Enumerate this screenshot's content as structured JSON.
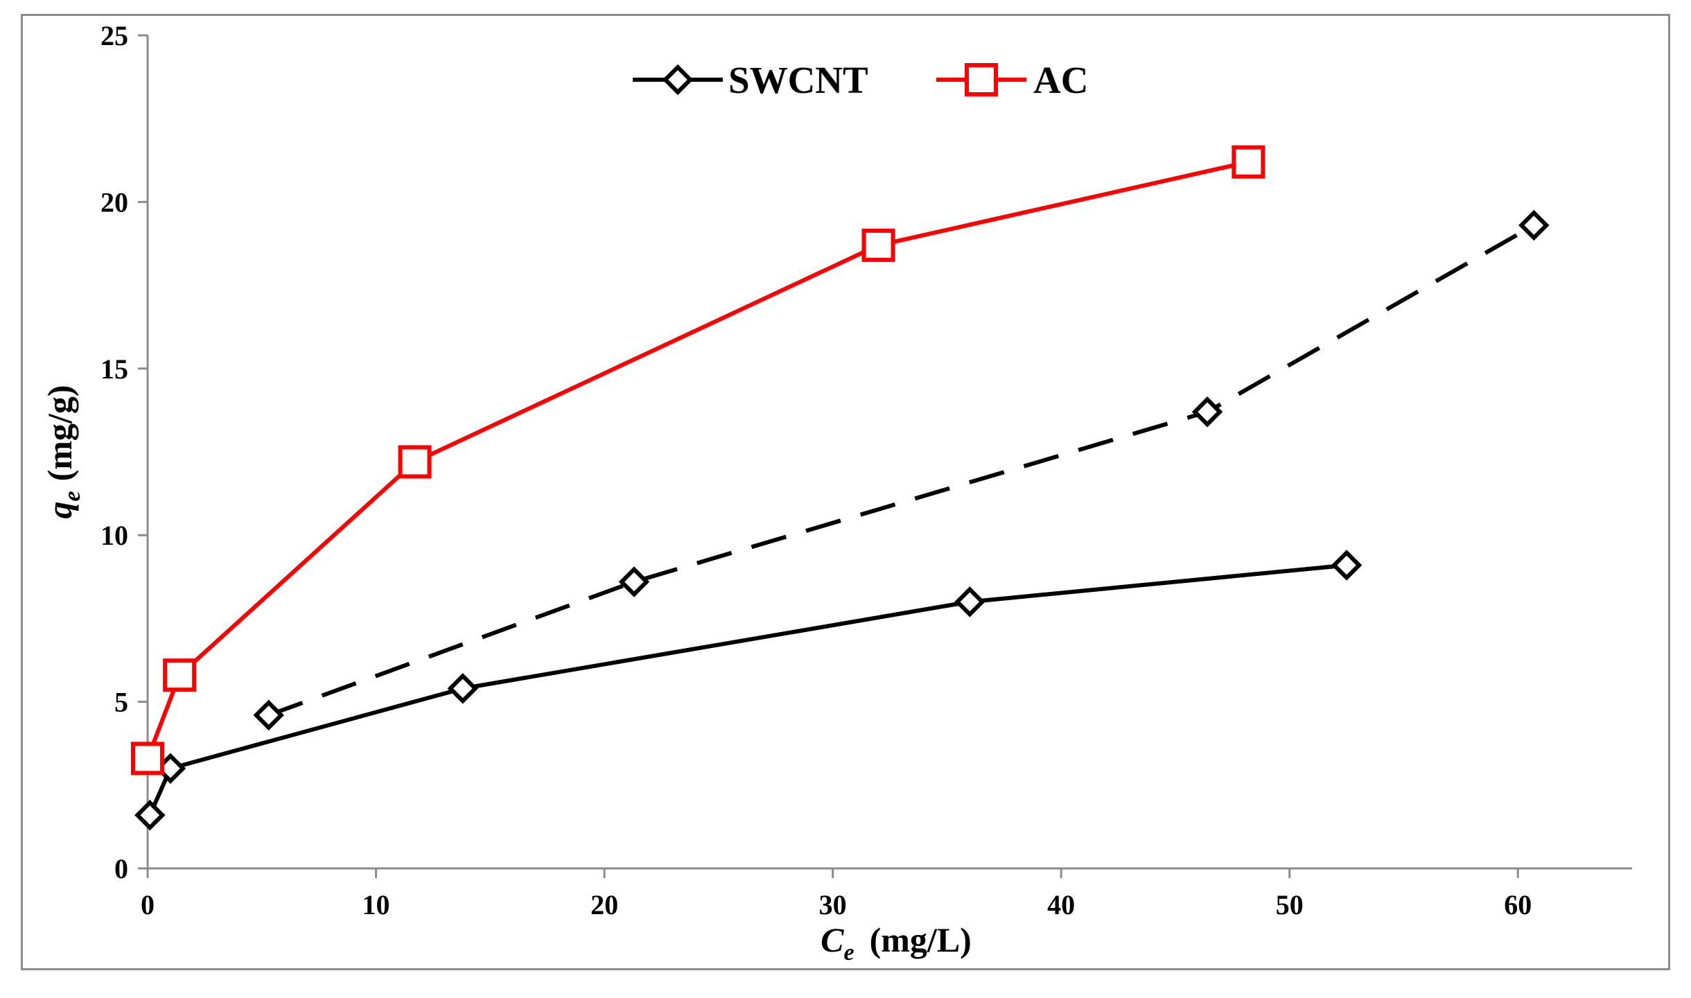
{
  "chart_data": {
    "type": "line",
    "title": "",
    "xlabel_main": "C",
    "xlabel_sub": "e",
    "xlabel_unit": "(mg/L)",
    "ylabel_main": "q",
    "ylabel_sub": "e",
    "ylabel_unit": "(mg/g)",
    "xlim": [
      0,
      65
    ],
    "ylim": [
      0,
      25
    ],
    "xticks": [
      0,
      10,
      20,
      30,
      40,
      50,
      60
    ],
    "yticks": [
      0,
      5,
      10,
      15,
      20,
      25
    ],
    "grid": false,
    "legend_position": "top-center",
    "series": [
      {
        "name": "SWCNT",
        "in_legend": true,
        "color": "#000000",
        "dash": "solid",
        "marker": "diamond",
        "x": [
          0.1,
          1.0,
          13.8,
          36.0,
          52.5
        ],
        "y": [
          1.6,
          3.0,
          5.4,
          8.0,
          9.1
        ]
      },
      {
        "name": "SWCNT (dashed)",
        "in_legend": false,
        "color": "#000000",
        "dash": "dashed",
        "marker": "diamond",
        "x": [
          5.3,
          21.3,
          46.4,
          60.7
        ],
        "y": [
          4.6,
          8.6,
          13.7,
          19.3
        ]
      },
      {
        "name": "AC",
        "in_legend": true,
        "color": "#ff0000",
        "dash": "solid",
        "marker": "square",
        "x": [
          0.0,
          1.4,
          11.7,
          32.0,
          48.2
        ],
        "y": [
          3.3,
          5.8,
          12.2,
          18.7,
          21.2
        ]
      }
    ]
  }
}
